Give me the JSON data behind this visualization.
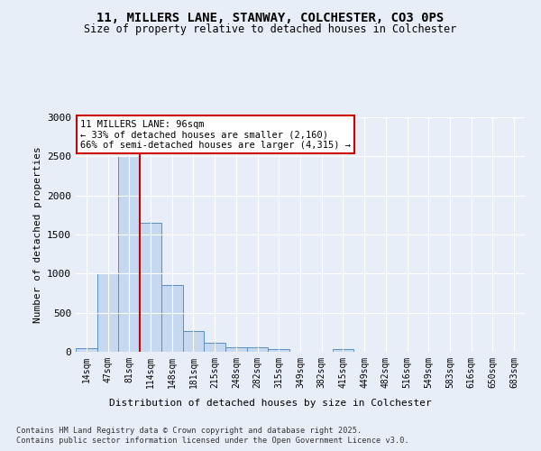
{
  "title_line1": "11, MILLERS LANE, STANWAY, COLCHESTER, CO3 0PS",
  "title_line2": "Size of property relative to detached houses in Colchester",
  "xlabel": "Distribution of detached houses by size in Colchester",
  "ylabel": "Number of detached properties",
  "footer_line1": "Contains HM Land Registry data © Crown copyright and database right 2025.",
  "footer_line2": "Contains public sector information licensed under the Open Government Licence v3.0.",
  "bins": [
    "14sqm",
    "47sqm",
    "81sqm",
    "114sqm",
    "148sqm",
    "181sqm",
    "215sqm",
    "248sqm",
    "282sqm",
    "315sqm",
    "349sqm",
    "382sqm",
    "415sqm",
    "449sqm",
    "482sqm",
    "516sqm",
    "549sqm",
    "583sqm",
    "616sqm",
    "650sqm",
    "683sqm"
  ],
  "values": [
    50,
    1000,
    2500,
    1650,
    850,
    270,
    120,
    55,
    55,
    30,
    0,
    0,
    30,
    0,
    0,
    0,
    0,
    0,
    0,
    0,
    0
  ],
  "bar_color": "#c5d8f0",
  "bar_edge_color": "#5a8fc0",
  "vline_color": "#cc0000",
  "vline_x_idx": 2,
  "annotation_text": "11 MILLERS LANE: 96sqm\n← 33% of detached houses are smaller (2,160)\n66% of semi-detached houses are larger (4,315) →",
  "annotation_box_color": "white",
  "annotation_box_edge": "#cc0000",
  "ylim": [
    0,
    3000
  ],
  "yticks": [
    0,
    500,
    1000,
    1500,
    2000,
    2500,
    3000
  ],
  "background_color": "#e8eef8",
  "plot_bg_color": "#e8eef8",
  "grid_color": "#ffffff"
}
